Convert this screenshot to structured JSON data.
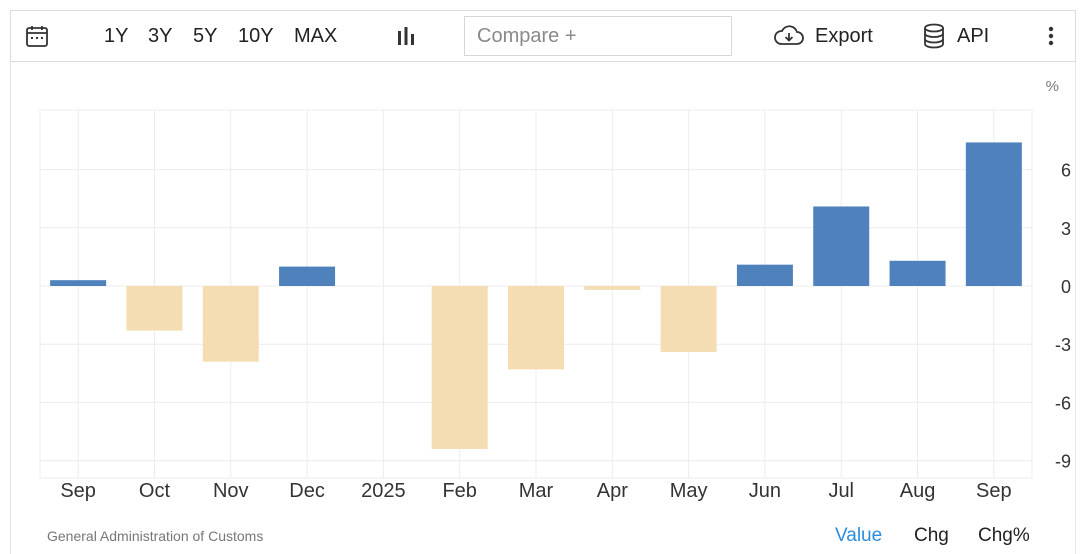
{
  "toolbar": {
    "ranges": [
      "1Y",
      "3Y",
      "5Y",
      "10Y",
      "MAX"
    ],
    "compare_placeholder": "Compare +",
    "export_label": "Export",
    "api_label": "API"
  },
  "chart_data": {
    "type": "bar",
    "unit_label": "%",
    "categories": [
      "Sep",
      "Oct",
      "Nov",
      "Dec",
      "2025",
      "Feb",
      "Mar",
      "Apr",
      "May",
      "Jun",
      "Jul",
      "Aug",
      "Sep"
    ],
    "values": [
      0.3,
      -2.3,
      -3.9,
      1.0,
      0,
      -8.4,
      -4.3,
      -0.2,
      -3.4,
      1.1,
      4.1,
      1.3,
      7.4
    ],
    "ylim": [
      -9,
      8
    ],
    "yticks": [
      6,
      3,
      0,
      -3,
      -6,
      -9
    ],
    "positive_color": "#4f81bd",
    "negative_color": "#f5ddb3",
    "grid": true,
    "title": "",
    "xlabel": "",
    "ylabel": ""
  },
  "footer": {
    "source": "General Administration of Customs",
    "tabs": [
      "Value",
      "Chg",
      "Chg%"
    ],
    "active_tab": "Value"
  }
}
